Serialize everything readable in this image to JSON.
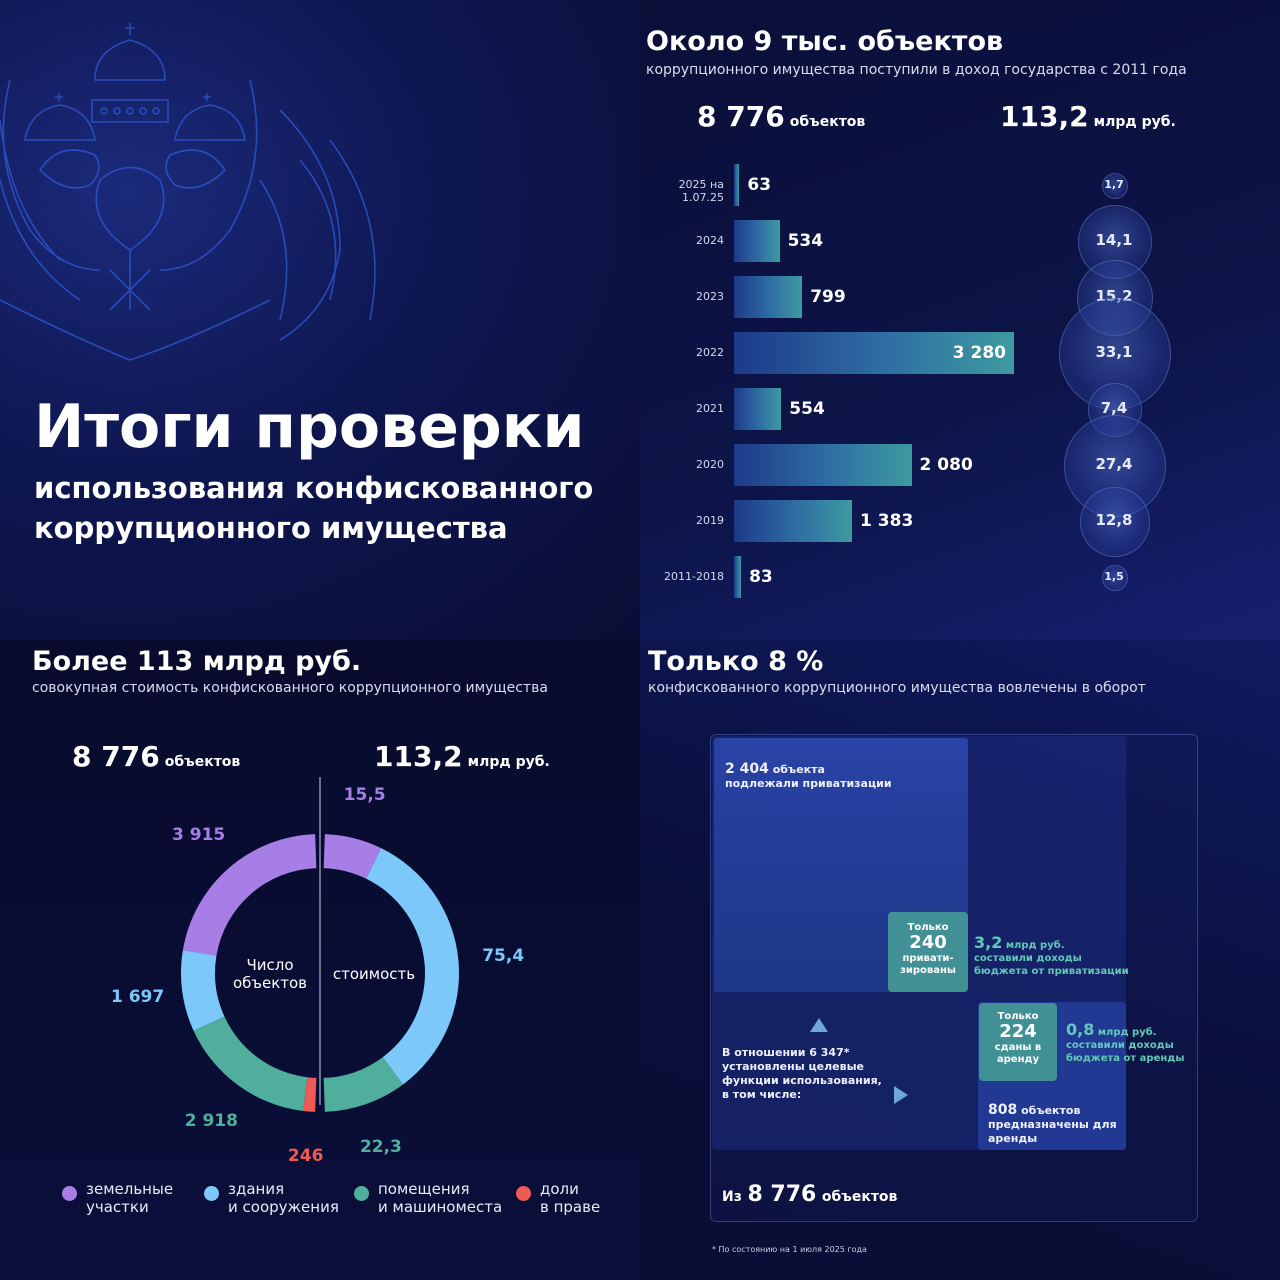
{
  "title_panel": {
    "title": "Итоги проверки",
    "subtitle": "использования конфискованного коррупционного имущества",
    "emblem": "double-headed-eagle-emblem"
  },
  "years_panel": {
    "heading": "Около 9 тыс. объектов",
    "subheading": "коррупционного имущества поступили в доход государства с 2011 года",
    "total_objects": "8 776",
    "total_objects_unit": "объектов",
    "total_value": "113,2",
    "total_value_unit": "млрд руб."
  },
  "donut_panel": {
    "heading": "Более 113 млрд руб.",
    "subheading": "совокупная стоимость конфискованного коррупционного имущества",
    "left_total": "8 776",
    "left_total_unit": "объектов",
    "right_total": "113,2",
    "right_total_unit": "млрд руб.",
    "left_center_label": "Число объектов",
    "right_center_label": "стоимость",
    "legend": [
      {
        "label": "земельные\nучастки",
        "color": "#a77ee6"
      },
      {
        "label": "здания\nи сооружения",
        "color": "#7cc8f8"
      },
      {
        "label": "помещения\nи машиноместа",
        "color": "#4fae9c"
      },
      {
        "label": "доли\nв праве",
        "color": "#ef5b54"
      }
    ]
  },
  "tree_panel": {
    "heading": "Только 8 %",
    "subheading": "конфискованного коррупционного имущества вовлечены в оборот",
    "privatization_count": "2 404",
    "privatization_unit": "объекта",
    "privatization_text": "подлежали приватизации",
    "privatized_only": "Только",
    "privatized_count": "240",
    "privatized_text": "привати-зированы",
    "privatized_income": "3,2",
    "privatized_income_unit": "млрд руб.",
    "privatized_income_text": "составили доходы бюджета от приватизации",
    "rented_only": "Только",
    "rented_count": "224",
    "rented_text": "сданы в аренду",
    "rent_income": "0,8",
    "rent_income_unit": "млрд руб.",
    "rent_income_text": "составили доходы бюджета от аренды",
    "rent_planned_count": "808",
    "rent_planned_unit": "объектов",
    "rent_planned_text": "предназначены для аренды",
    "purpose_text": "В отношении 6 347* установлены целевые функции использования, в том числе:",
    "total_prefix": "Из",
    "total_count": "8 776",
    "total_unit": "объектов",
    "footnote": "* По состоянию на 1 июля 2025 года"
  },
  "chart_data": [
    {
      "type": "bar",
      "categories": [
        "2025 на 1.07.25",
        "2024",
        "2023",
        "2022",
        "2021",
        "2020",
        "2019",
        "2011-2018"
      ],
      "series": [
        {
          "name": "объектов",
          "values": [
            63,
            534,
            799,
            3280,
            554,
            2080,
            1383,
            83
          ],
          "labels": [
            "63",
            "534",
            "799",
            "3 280",
            "554",
            "2 080",
            "1 383",
            "83"
          ]
        },
        {
          "name": "млрд руб.",
          "values": [
            1.7,
            14.1,
            15.2,
            33.1,
            7.4,
            27.4,
            12.8,
            1.5
          ],
          "labels": [
            "1,7",
            "14,1",
            "15,2",
            "33,1",
            "7,4",
            "27,4",
            "12,8",
            "1,5"
          ]
        }
      ],
      "colors": {
        "bar_start": "#1d3a8a",
        "bar_end": "#3d9aa0",
        "bubble": "#3c56b4"
      }
    },
    {
      "type": "pie",
      "title": "Число объектов",
      "categories": [
        "земельные участки",
        "здания и сооружения",
        "помещения и машиноместа",
        "доли в праве"
      ],
      "values": [
        3915,
        1697,
        2918,
        246
      ],
      "labels": [
        "3 915",
        "1 697",
        "2 918",
        "246"
      ],
      "colors": [
        "#a77ee6",
        "#7cc8f8",
        "#4fae9c",
        "#ef5b54"
      ]
    },
    {
      "type": "pie",
      "title": "стоимость",
      "categories": [
        "земельные участки",
        "здания и сооружения",
        "помещения и машиноместа"
      ],
      "values": [
        15.5,
        75.4,
        22.3
      ],
      "labels": [
        "15,5",
        "75,4",
        "22,3"
      ],
      "colors": [
        "#a77ee6",
        "#7cc8f8",
        "#4fae9c"
      ]
    }
  ]
}
